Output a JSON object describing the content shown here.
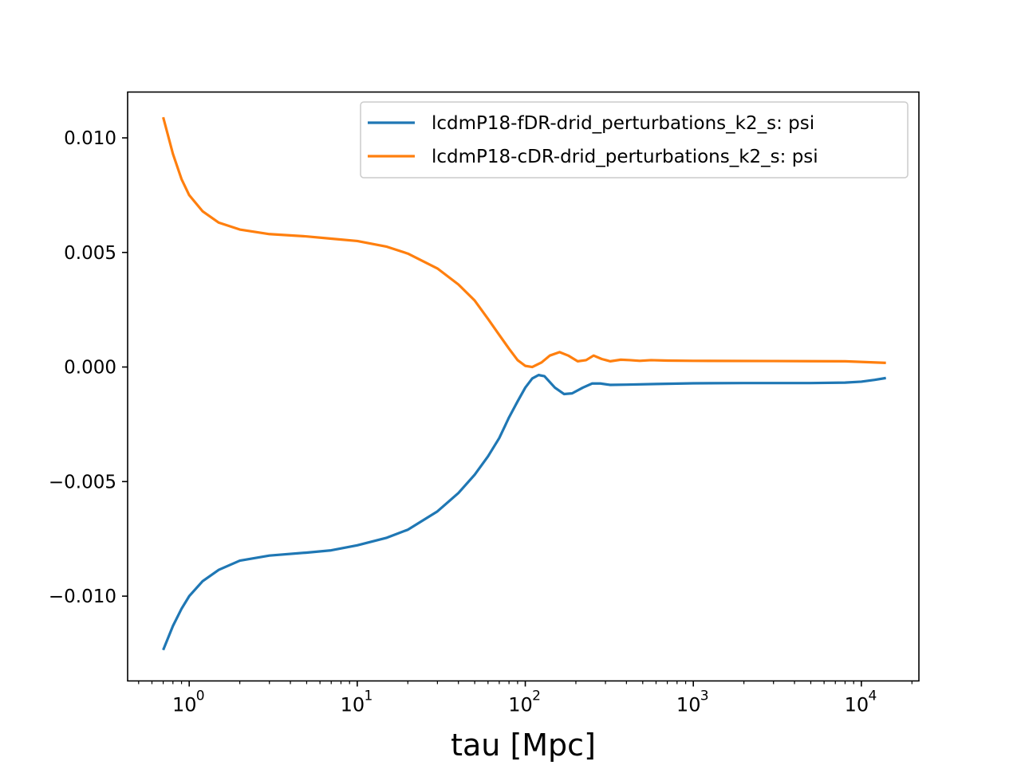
{
  "chart_data": {
    "type": "line",
    "title": "",
    "xlabel": "tau [Mpc]",
    "ylabel": "",
    "xscale": "log",
    "xlim": [
      0.43,
      22000
    ],
    "ylim": [
      -0.0137,
      0.012
    ],
    "x_ticks": [
      {
        "value": 1,
        "base": "10",
        "exp": "0"
      },
      {
        "value": 10,
        "base": "10",
        "exp": "1"
      },
      {
        "value": 100,
        "base": "10",
        "exp": "2"
      },
      {
        "value": 1000,
        "base": "10",
        "exp": "3"
      },
      {
        "value": 10000,
        "base": "10",
        "exp": "4"
      }
    ],
    "y_ticks": [
      {
        "value": 0.01,
        "label": "0.010"
      },
      {
        "value": 0.005,
        "label": "0.005"
      },
      {
        "value": 0.0,
        "label": "0.000"
      },
      {
        "value": -0.005,
        "label": "−0.005"
      },
      {
        "value": -0.01,
        "label": "−0.010"
      }
    ],
    "grid": false,
    "legend_position": "top-right",
    "series": [
      {
        "name": "lcdmP18-fDR-drid_perturbations_k2_s: psi",
        "color": "#1f77b4",
        "points": [
          [
            0.7,
            -0.01235
          ],
          [
            0.8,
            -0.0113
          ],
          [
            0.9,
            -0.01055
          ],
          [
            1.0,
            -0.01
          ],
          [
            1.2,
            -0.00935
          ],
          [
            1.5,
            -0.00885
          ],
          [
            2.0,
            -0.00845
          ],
          [
            3.0,
            -0.00823
          ],
          [
            5.0,
            -0.0081
          ],
          [
            7.0,
            -0.008
          ],
          [
            10.0,
            -0.00778
          ],
          [
            15.0,
            -0.00745
          ],
          [
            20.0,
            -0.0071
          ],
          [
            30.0,
            -0.0063
          ],
          [
            40.0,
            -0.0055
          ],
          [
            50.0,
            -0.0047
          ],
          [
            60.0,
            -0.0039
          ],
          [
            70.0,
            -0.0031
          ],
          [
            80.0,
            -0.0022
          ],
          [
            90.0,
            -0.0015
          ],
          [
            100.0,
            -0.0009
          ],
          [
            110.0,
            -0.0005
          ],
          [
            120.0,
            -0.00035
          ],
          [
            130.0,
            -0.0004
          ],
          [
            150.0,
            -0.0009
          ],
          [
            170.0,
            -0.00118
          ],
          [
            190.0,
            -0.00115
          ],
          [
            220.0,
            -0.0009
          ],
          [
            250.0,
            -0.00072
          ],
          [
            280.0,
            -0.00072
          ],
          [
            320.0,
            -0.00078
          ],
          [
            400.0,
            -0.00077
          ],
          [
            600.0,
            -0.00074
          ],
          [
            1000.0,
            -0.00071
          ],
          [
            2000.0,
            -0.0007
          ],
          [
            5000.0,
            -0.0007
          ],
          [
            8000.0,
            -0.00068
          ],
          [
            10000.0,
            -0.00064
          ],
          [
            12000.0,
            -0.00056
          ],
          [
            14000.0,
            -0.00048
          ]
        ]
      },
      {
        "name": "lcdmP18-cDR-drid_perturbations_k2_s: psi",
        "color": "#ff7f0e",
        "points": [
          [
            0.7,
            0.0109
          ],
          [
            0.8,
            0.0093
          ],
          [
            0.9,
            0.0082
          ],
          [
            1.0,
            0.0075
          ],
          [
            1.2,
            0.0068
          ],
          [
            1.5,
            0.0063
          ],
          [
            2.0,
            0.006
          ],
          [
            3.0,
            0.0058
          ],
          [
            5.0,
            0.0057
          ],
          [
            7.0,
            0.0056
          ],
          [
            10.0,
            0.0055
          ],
          [
            15.0,
            0.00525
          ],
          [
            20.0,
            0.00495
          ],
          [
            30.0,
            0.0043
          ],
          [
            40.0,
            0.0036
          ],
          [
            50.0,
            0.0029
          ],
          [
            60.0,
            0.0021
          ],
          [
            70.0,
            0.0014
          ],
          [
            80.0,
            0.0008
          ],
          [
            90.0,
            0.0003
          ],
          [
            100.0,
            5e-05
          ],
          [
            110.0,
            0.0
          ],
          [
            125.0,
            0.0002
          ],
          [
            140.0,
            0.0005
          ],
          [
            160.0,
            0.00065
          ],
          [
            180.0,
            0.0005
          ],
          [
            205.0,
            0.00025
          ],
          [
            230.0,
            0.0003
          ],
          [
            255.0,
            0.0005
          ],
          [
            285.0,
            0.00035
          ],
          [
            320.0,
            0.00025
          ],
          [
            370.0,
            0.00032
          ],
          [
            420.0,
            0.0003
          ],
          [
            480.0,
            0.00027
          ],
          [
            560.0,
            0.0003
          ],
          [
            700.0,
            0.00028
          ],
          [
            1000.0,
            0.00027
          ],
          [
            3000.0,
            0.00026
          ],
          [
            8000.0,
            0.00025
          ],
          [
            14000.0,
            0.00018
          ]
        ]
      }
    ]
  }
}
